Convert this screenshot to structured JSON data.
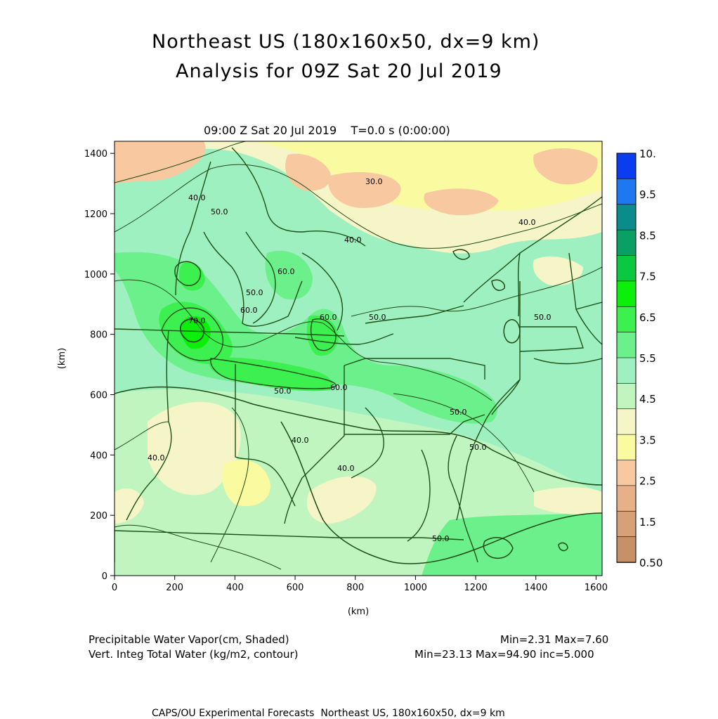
{
  "header": {
    "title_line1": "Northeast US (180x160x50, dx=9 km)",
    "title_line2": "Analysis for 09Z Sat 20 Jul 2019",
    "time_label": "09:00 Z Sat 20 Jul 2019    T=0.0 s (0:00:00)"
  },
  "map": {
    "x_axis": {
      "unit_label": "(km)",
      "ticks": [
        "0",
        "200",
        "400",
        "600",
        "800",
        "1000",
        "1200",
        "1400",
        "1600"
      ]
    },
    "y_axis": {
      "unit_label": "(km)",
      "ticks": [
        "0",
        "200",
        "400",
        "600",
        "800",
        "1000",
        "1200",
        "1400"
      ]
    },
    "contour_labels": [
      "30.0",
      "40.0",
      "40.0",
      "40.0",
      "40.0",
      "40.0",
      "40.0",
      "50.0",
      "50.0",
      "50.0",
      "50.0",
      "50.0",
      "50.0",
      "50.0",
      "50.0",
      "60.0",
      "60.0",
      "60.0",
      "60.0",
      "70.0"
    ]
  },
  "colorbar": {
    "labels": [
      "10.",
      "9.5",
      "8.5",
      "7.5",
      "6.5",
      "5.5",
      "4.5",
      "3.5",
      "2.5",
      "1.5",
      "0.50"
    ],
    "colors": [
      "#0a3cf0",
      "#1e78f0",
      "#0a8c8c",
      "#0aa064",
      "#0ac840",
      "#0af00a",
      "#3cf050",
      "#6cf08c",
      "#9ff0c0",
      "#c0f5c0",
      "#f5f5c8",
      "#fafaa0",
      "#f8c8a0",
      "#e8b088",
      "#d8a078",
      "#c89068"
    ]
  },
  "legend": {
    "shaded_label": "Precipitable Water Vapor(cm, Shaded)",
    "shaded_stats": "Min=2.31 Max=7.60",
    "contour_label": "Vert. Integ Total Water (kg/m2, contour)",
    "contour_stats": "Min=23.13 Max=94.90 inc=5.000"
  },
  "footer": {
    "text": "CAPS/OU Experimental Forecasts  Northeast US, 180x160x50, dx=9 km"
  }
}
